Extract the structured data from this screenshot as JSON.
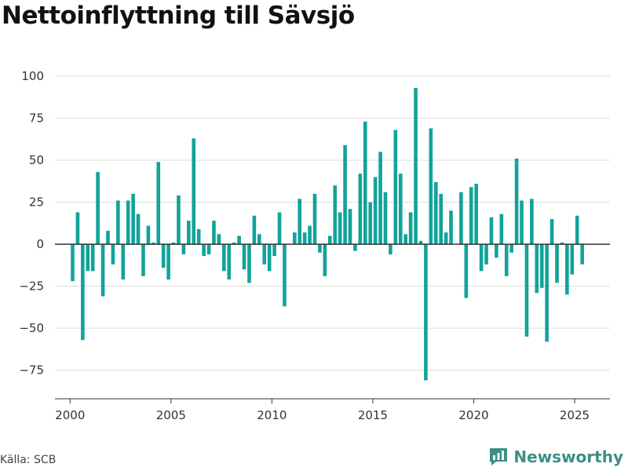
{
  "header": {
    "title": "Nettoinflyttning till Sävsjö"
  },
  "footer": {
    "source": "Källa: SCB",
    "brand": "Newsworthy"
  },
  "colors": {
    "bar": "#12a39a",
    "brand": "#3c8f87"
  },
  "chart_data": {
    "type": "bar",
    "title": "Nettoinflyttning till Sävsjö",
    "xlabel": "",
    "ylabel": "",
    "ylim": [
      -92,
      108
    ],
    "xlim": [
      1999.25,
      2026.75
    ],
    "y_ticks": [
      -75,
      -50,
      -25,
      0,
      25,
      50,
      75,
      100
    ],
    "x_ticks": [
      2000,
      2005,
      2010,
      2015,
      2020,
      2025
    ],
    "grid": true,
    "legend": "none",
    "series": [
      {
        "x": [
          2000.125,
          2000.375,
          2000.625,
          2000.875,
          2001.125,
          2001.375,
          2001.625,
          2001.875,
          2002.125,
          2002.375,
          2002.625,
          2002.875,
          2003.125,
          2003.375,
          2003.625,
          2003.875,
          2004.125,
          2004.375,
          2004.625,
          2004.875,
          2005.125,
          2005.375,
          2005.625,
          2005.875,
          2006.125,
          2006.375,
          2006.625,
          2006.875,
          2007.125,
          2007.375,
          2007.625,
          2007.875,
          2008.125,
          2008.375,
          2008.625,
          2008.875,
          2009.125,
          2009.375,
          2009.625,
          2009.875,
          2010.125,
          2010.375,
          2010.625,
          2010.875,
          2011.125,
          2011.375,
          2011.625,
          2011.875,
          2012.125,
          2012.375,
          2012.625,
          2012.875,
          2013.125,
          2013.375,
          2013.625,
          2013.875,
          2014.125,
          2014.375,
          2014.625,
          2014.875,
          2015.125,
          2015.375,
          2015.625,
          2015.875,
          2016.125,
          2016.375,
          2016.625,
          2016.875,
          2017.125,
          2017.375,
          2017.625,
          2017.875,
          2018.125,
          2018.375,
          2018.625,
          2018.875,
          2019.125,
          2019.375,
          2019.625,
          2019.875,
          2020.125,
          2020.375,
          2020.625,
          2020.875,
          2021.125,
          2021.375,
          2021.625,
          2021.875,
          2022.125,
          2022.375,
          2022.625,
          2022.875,
          2023.125,
          2023.375,
          2023.625,
          2023.875,
          2024.125,
          2024.375,
          2024.625,
          2024.875,
          2025.125,
          2025.375
        ],
        "values": [
          -22,
          19,
          -57,
          -16,
          -16,
          43,
          -31,
          8,
          -12,
          26,
          -21,
          26,
          30,
          18,
          -19,
          11,
          1,
          49,
          -14,
          -21,
          1,
          29,
          -6,
          14,
          63,
          9,
          -7,
          -6,
          14,
          6,
          -16,
          -21,
          1,
          5,
          -15,
          -23,
          17,
          6,
          -12,
          -16,
          -7,
          19,
          -37,
          0,
          7,
          27,
          7,
          11,
          30,
          -5,
          -19,
          5,
          35,
          19,
          59,
          21,
          -4,
          42,
          73,
          25,
          40,
          55,
          31,
          -6,
          68,
          42,
          6,
          19,
          93,
          2,
          -81,
          69,
          37,
          30,
          7,
          20,
          0,
          31,
          -32,
          34,
          36,
          -16,
          -12,
          16,
          -8,
          18,
          -19,
          -5,
          51,
          26,
          -55,
          27,
          -29,
          -26,
          -58,
          15,
          -23,
          1,
          -30,
          -18,
          17,
          -12
        ]
      }
    ]
  }
}
